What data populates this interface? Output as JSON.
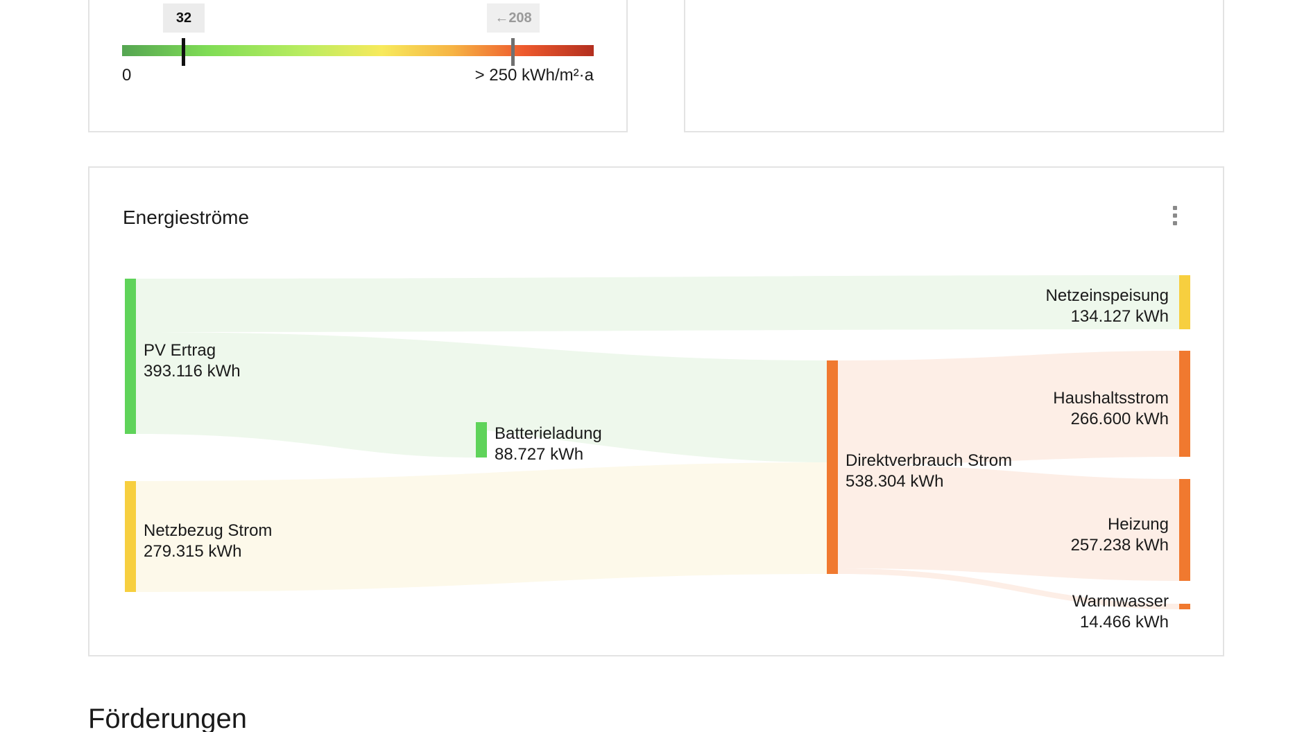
{
  "efficiency_scale": {
    "current_value": "32",
    "reference_label": "←208",
    "min_label": "0",
    "max_label": "> 250 kWh/m²·a",
    "current_numeric": 32,
    "reference_numeric": 208,
    "scale_max_numeric": 250
  },
  "energy_flows": {
    "title": "Energieströme",
    "menu_icon": "more-vertical-icon",
    "colors": {
      "pv": "#5fd35a",
      "grid": "#f7cf3f",
      "consumption": "#f0792f",
      "feed_in": "#f7cf3f",
      "pv_link": "#eef8ec",
      "grid_link": "#fdf9ea",
      "consumption_link": "#fdeee6"
    },
    "nodes": [
      {
        "id": "pv",
        "label": "PV Ertrag",
        "value": "393.116 kWh"
      },
      {
        "id": "grid",
        "label": "Netzbezug Strom",
        "value": "279.315 kWh"
      },
      {
        "id": "battery",
        "label": "Batterieladung",
        "value": "88.727 kWh"
      },
      {
        "id": "direct",
        "label": "Direktverbrauch Strom",
        "value": "538.304 kWh"
      },
      {
        "id": "feedin",
        "label": "Netzeinspeisung",
        "value": "134.127 kWh"
      },
      {
        "id": "household",
        "label": "Haushaltsstrom",
        "value": "266.600 kWh"
      },
      {
        "id": "heating",
        "label": "Heizung",
        "value": "257.238 kWh"
      },
      {
        "id": "hotwater",
        "label": "Warmwasser",
        "value": "14.466 kWh"
      }
    ]
  },
  "section": {
    "title": "Förderungen"
  }
}
